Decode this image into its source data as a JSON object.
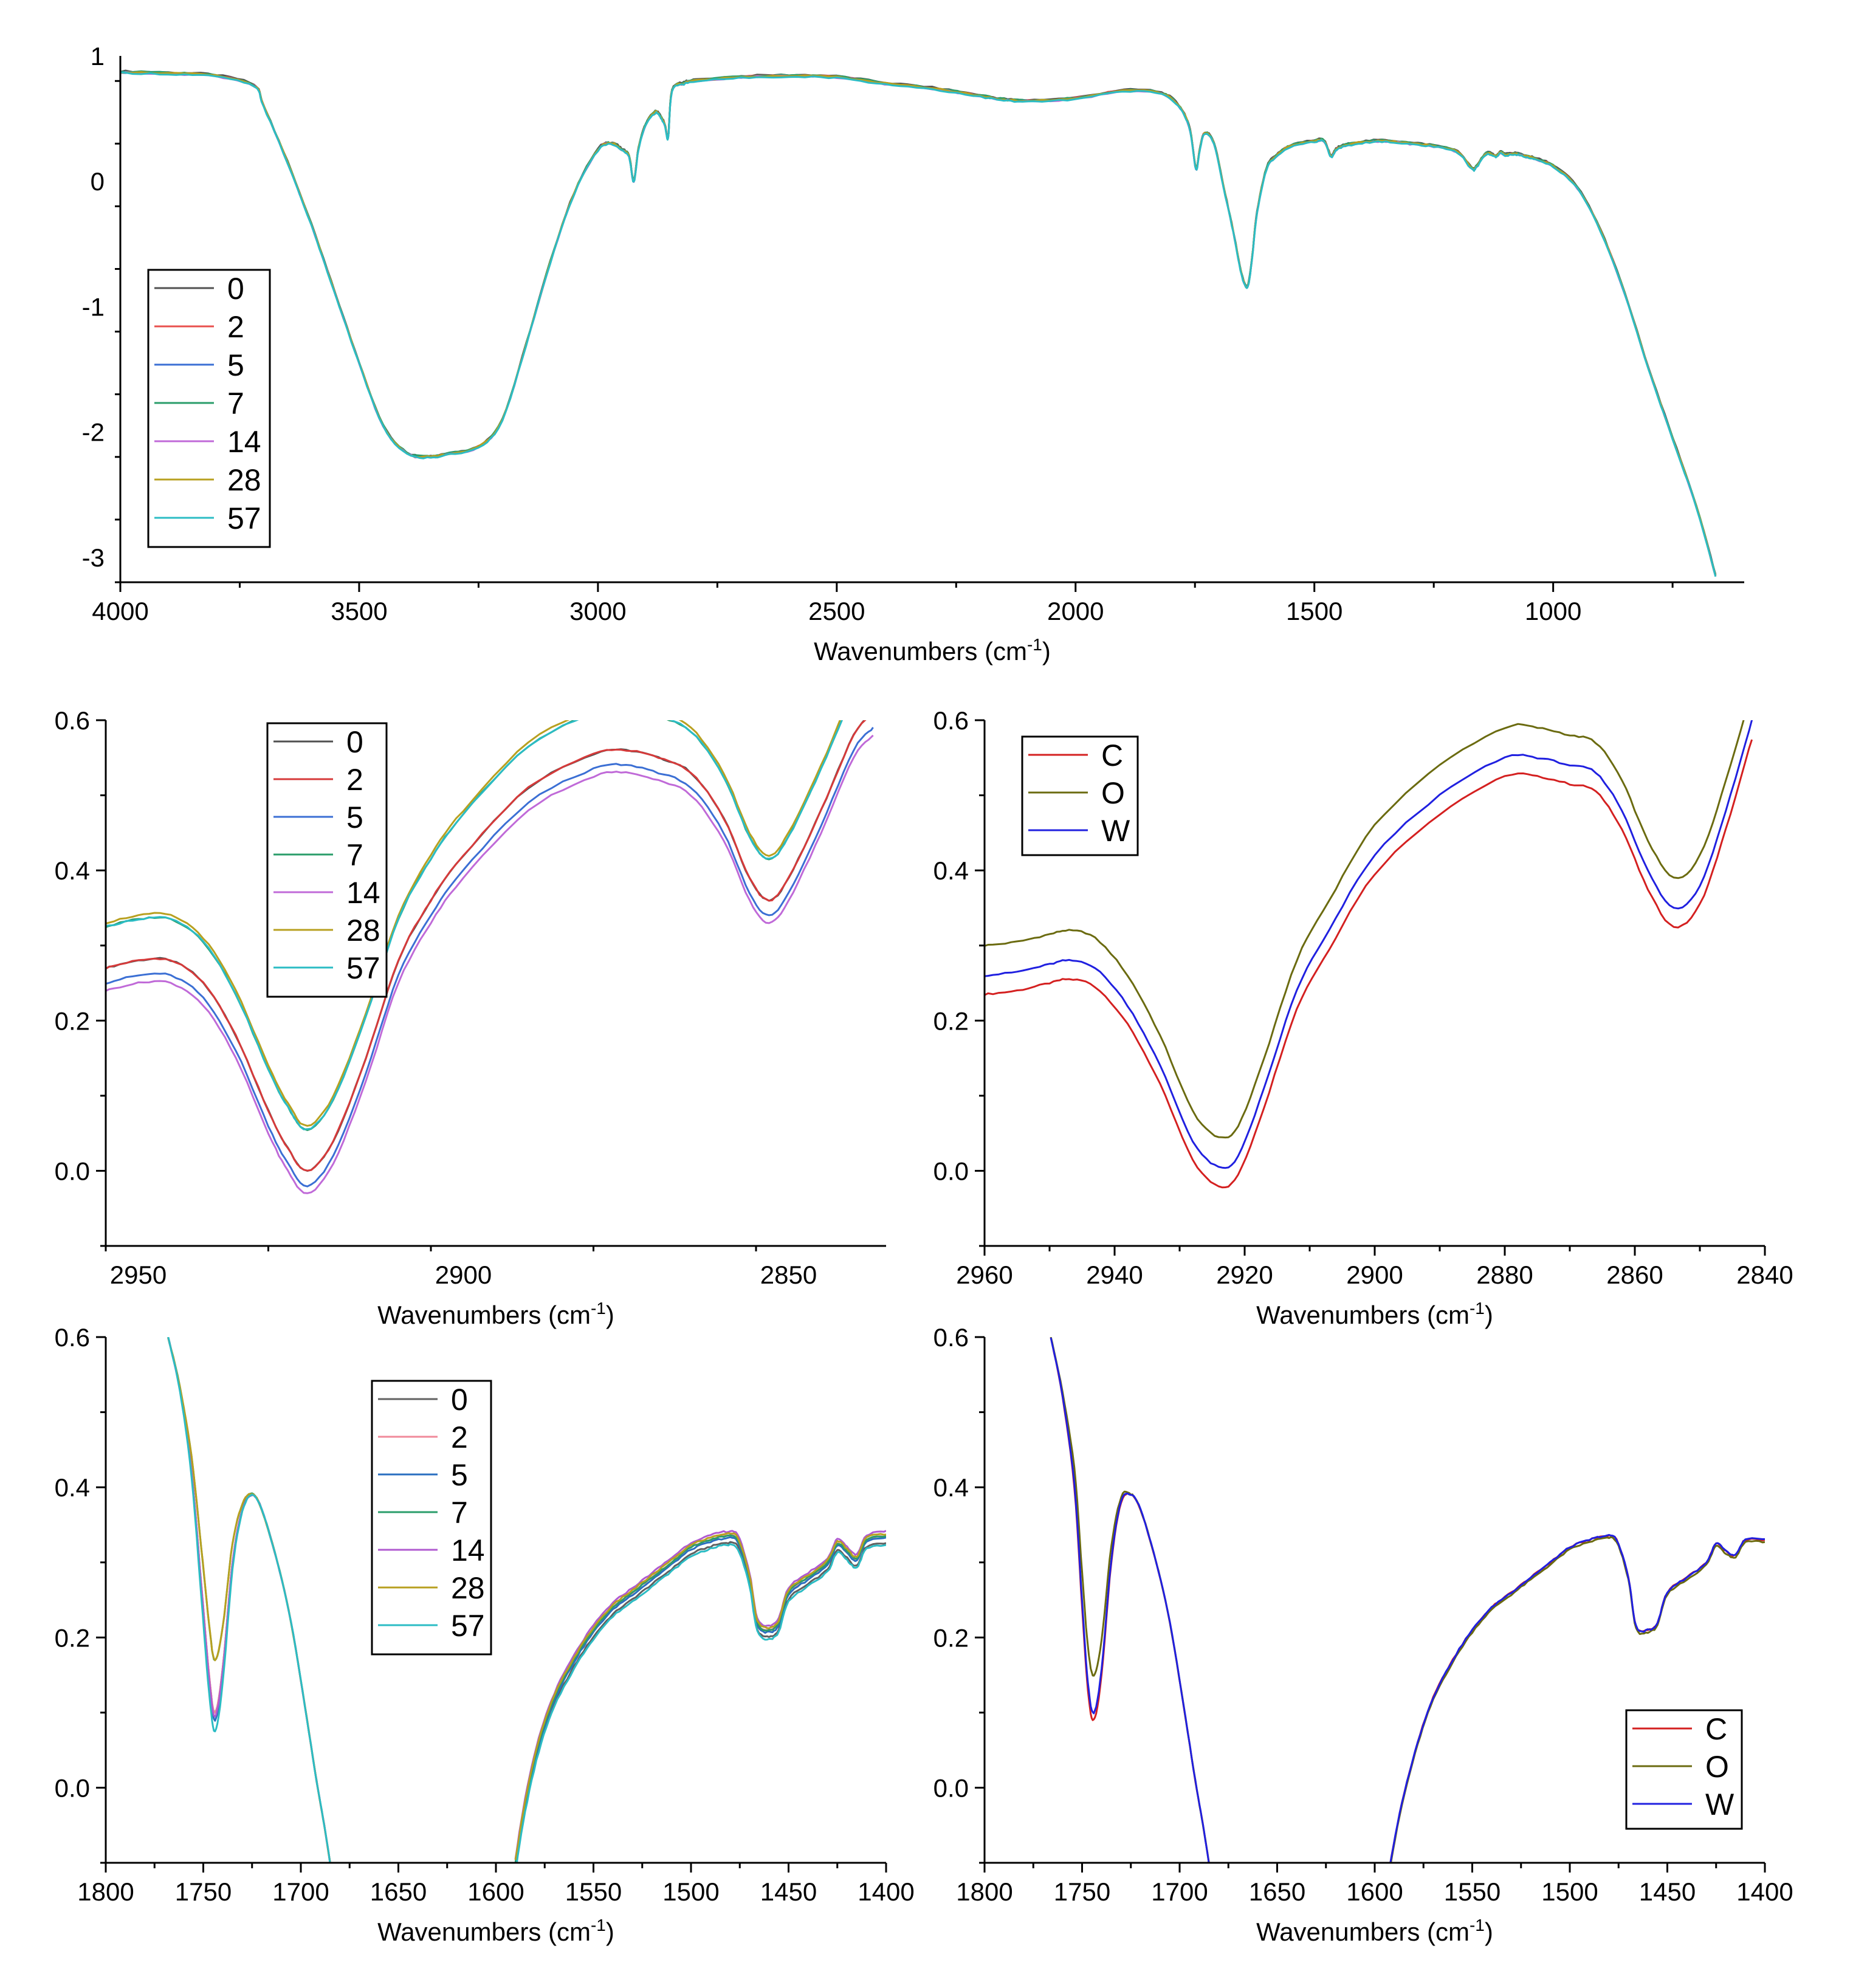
{
  "chart_data": [
    {
      "type": "line",
      "id": "full",
      "xlabel": "Wavenumbers (cm-1)",
      "xlabel_main": "Wavenumbers (cm",
      "xlabel_sup": "-1",
      "xlabel_end": ")",
      "xlim": [
        4000,
        600
      ],
      "ylim": [
        -3.2,
        1.0
      ],
      "xticks": [
        4000,
        3500,
        3000,
        2500,
        2000,
        1500,
        1000
      ],
      "yticks": [
        1,
        0,
        -1,
        -2,
        -3
      ],
      "legend_position": "left",
      "series": [
        {
          "name": "0",
          "color": "#505050"
        },
        {
          "name": "2",
          "color": "#e8504e"
        },
        {
          "name": "5",
          "color": "#3b6fd4"
        },
        {
          "name": "7",
          "color": "#2a9d6a"
        },
        {
          "name": "14",
          "color": "#c06ad8"
        },
        {
          "name": "28",
          "color": "#b8a020"
        },
        {
          "name": "57",
          "color": "#2bbcc4"
        }
      ],
      "x": [
        4000,
        3900,
        3800,
        3720,
        3700,
        3650,
        3600,
        3550,
        3500,
        3450,
        3400,
        3350,
        3320,
        3250,
        3200,
        3150,
        3100,
        3050,
        3000,
        2970,
        2950,
        2935,
        2925,
        2915,
        2900,
        2880,
        2870,
        2860,
        2853,
        2845,
        2820,
        2800,
        2700,
        2600,
        2500,
        2400,
        2300,
        2200,
        2150,
        2100,
        2000,
        1900,
        1820,
        1780,
        1760,
        1748,
        1740,
        1730,
        1710,
        1690,
        1670,
        1655,
        1645,
        1638,
        1630,
        1620,
        1600,
        1580,
        1550,
        1500,
        1480,
        1465,
        1455,
        1440,
        1400,
        1350,
        1300,
        1250,
        1200,
        1170,
        1160,
        1140,
        1120,
        1110,
        1100,
        1080,
        1060,
        1040,
        1000,
        950,
        900,
        850,
        800,
        750,
        700,
        660
      ],
      "values": [
        0.87,
        0.86,
        0.84,
        0.76,
        0.6,
        0.15,
        -0.35,
        -0.9,
        -1.45,
        -1.95,
        -2.17,
        -2.2,
        -2.18,
        -2.12,
        -1.9,
        -1.3,
        -0.65,
        -0.1,
        0.25,
        0.3,
        0.25,
        0.2,
        0.0,
        0.26,
        0.45,
        0.55,
        0.52,
        0.45,
        0.35,
        0.72,
        0.78,
        0.8,
        0.83,
        0.84,
        0.83,
        0.78,
        0.74,
        0.68,
        0.65,
        0.64,
        0.66,
        0.72,
        0.7,
        0.58,
        0.4,
        0.1,
        0.25,
        0.38,
        0.3,
        -0.05,
        -0.4,
        -0.7,
        -0.83,
        -0.82,
        -0.6,
        -0.25,
        0.1,
        0.2,
        0.28,
        0.32,
        0.32,
        0.2,
        0.25,
        0.28,
        0.31,
        0.32,
        0.3,
        0.28,
        0.23,
        0.1,
        0.12,
        0.22,
        0.2,
        0.23,
        0.21,
        0.22,
        0.2,
        0.18,
        0.12,
        -0.05,
        -0.4,
        -0.9,
        -1.5,
        -2.05,
        -2.6,
        -3.15
      ],
      "offsets": [
        0.03,
        0.01,
        0.0,
        0.02,
        -0.01,
        0.005,
        -0.02
      ]
    },
    {
      "type": "line",
      "id": "ch-a",
      "xlabel_main": "Wavenumbers (cm",
      "xlabel_sup": "-1",
      "xlabel_end": ")",
      "xlim": [
        2955,
        2835
      ],
      "ylim": [
        -0.1,
        0.6
      ],
      "xticks": [
        2950,
        2900,
        2850
      ],
      "yticks": [
        0.6,
        0.4,
        0.2,
        0.0
      ],
      "ytick_labels": [
        "0.6",
        "0.4",
        "0.2",
        "0.0"
      ],
      "legend_position": "top-center",
      "series": [
        {
          "name": "0",
          "color": "#505050"
        },
        {
          "name": "2",
          "color": "#d63a3a"
        },
        {
          "name": "5",
          "color": "#3b6fd4"
        },
        {
          "name": "7",
          "color": "#2a9d6a"
        },
        {
          "name": "14",
          "color": "#c06ad8"
        },
        {
          "name": "28",
          "color": "#b8a020"
        },
        {
          "name": "57",
          "color": "#2bbcc4"
        }
      ],
      "x": [
        2955,
        2950,
        2945,
        2940,
        2935,
        2930,
        2927,
        2924,
        2920,
        2915,
        2910,
        2905,
        2900,
        2890,
        2880,
        2875,
        2870,
        2865,
        2860,
        2856,
        2853,
        2850,
        2845,
        2840,
        2837
      ],
      "values": [
        0.27,
        0.28,
        0.28,
        0.25,
        0.18,
        0.08,
        0.03,
        0.0,
        0.04,
        0.15,
        0.28,
        0.36,
        0.42,
        0.51,
        0.555,
        0.56,
        0.55,
        0.53,
        0.47,
        0.39,
        0.36,
        0.39,
        0.48,
        0.58,
        0.61
      ],
      "offsets": [
        0.0,
        0.0,
        -0.02,
        0.055,
        -0.03,
        0.06,
        0.055
      ]
    },
    {
      "type": "line",
      "id": "ch-b",
      "xlabel_main": "Wavenumbers (cm",
      "xlabel_sup": "-1",
      "xlabel_end": ")",
      "xlim": [
        2960,
        2840
      ],
      "ylim": [
        -0.1,
        0.6
      ],
      "xticks": [
        2960,
        2940,
        2920,
        2900,
        2880,
        2860,
        2840
      ],
      "yticks": [
        0.6,
        0.4,
        0.2,
        0.0
      ],
      "ytick_labels": [
        "0.6",
        "0.4",
        "0.2",
        "0.0"
      ],
      "legend_position": "top-left",
      "series": [
        {
          "name": "C",
          "color": "#d42020"
        },
        {
          "name": "O",
          "color": "#6b6b10"
        },
        {
          "name": "W",
          "color": "#2020e0"
        }
      ],
      "x": [
        2960,
        2955,
        2950,
        2947,
        2943,
        2938,
        2933,
        2928,
        2924,
        2921,
        2917,
        2912,
        2907,
        2900,
        2890,
        2880,
        2875,
        2870,
        2866,
        2862,
        2858,
        2854,
        2850,
        2846,
        2842
      ],
      "values": [
        0.26,
        0.265,
        0.275,
        0.28,
        0.27,
        0.22,
        0.14,
        0.04,
        0.005,
        0.02,
        0.11,
        0.24,
        0.32,
        0.42,
        0.5,
        0.55,
        0.55,
        0.54,
        0.53,
        0.48,
        0.4,
        0.35,
        0.38,
        0.48,
        0.6
      ],
      "offsets": [
        -0.025,
        0.04,
        0.0
      ]
    },
    {
      "type": "line",
      "id": "co-a",
      "xlabel_main": "Wavenumbers (cm",
      "xlabel_sup": "-1",
      "xlabel_end": ")",
      "xlim": [
        1800,
        1400
      ],
      "ylim": [
        -0.1,
        0.6
      ],
      "xticks": [
        1800,
        1750,
        1700,
        1650,
        1600,
        1550,
        1500,
        1450,
        1400
      ],
      "yticks": [
        0.6,
        0.4,
        0.2,
        0.0
      ],
      "ytick_labels": [
        "0.6",
        "0.4",
        "0.2",
        "0.0"
      ],
      "legend_position": "top-center",
      "series": [
        {
          "name": "0",
          "color": "#606060"
        },
        {
          "name": "2",
          "color": "#f08a9a"
        },
        {
          "name": "5",
          "color": "#2a6fc0"
        },
        {
          "name": "7",
          "color": "#2a9d6a"
        },
        {
          "name": "14",
          "color": "#b05ad0"
        },
        {
          "name": "28",
          "color": "#b8a020"
        },
        {
          "name": "57",
          "color": "#2bbcc4"
        }
      ],
      "segments": [
        {
          "x": [
            1768,
            1762,
            1756,
            1751,
            1747,
            1744,
            1740,
            1735,
            1730,
            1725,
            1720,
            1712,
            1705,
            1698,
            1692,
            1688,
            1685
          ],
          "values": [
            0.6,
            0.53,
            0.42,
            0.27,
            0.15,
            0.1,
            0.16,
            0.3,
            0.37,
            0.39,
            0.37,
            0.3,
            0.22,
            0.11,
            0.01,
            -0.05,
            -0.1
          ]
        },
        {
          "x": [
            1590,
            1585,
            1578,
            1570,
            1560,
            1550,
            1540,
            1530,
            1520,
            1510,
            1500,
            1490,
            1482,
            1476,
            1470,
            1466,
            1460,
            1455,
            1450,
            1440,
            1430,
            1425,
            1420,
            1415,
            1410,
            1400
          ],
          "values": [
            -0.1,
            -0.02,
            0.06,
            0.12,
            0.17,
            0.21,
            0.24,
            0.26,
            0.28,
            0.3,
            0.32,
            0.33,
            0.335,
            0.33,
            0.28,
            0.22,
            0.21,
            0.22,
            0.26,
            0.28,
            0.3,
            0.325,
            0.315,
            0.305,
            0.33,
            0.335
          ]
        }
      ],
      "offsets": [
        -0.015,
        0.0,
        -0.005,
        0.0,
        0.01,
        0.005,
        -0.02
      ],
      "peak_offsets": [
        0.0,
        0.0,
        -0.01,
        0.07,
        -0.005,
        0.07,
        -0.025
      ]
    },
    {
      "type": "line",
      "id": "co-b",
      "xlabel_main": "Wavenumbers (cm",
      "xlabel_sup": "-1",
      "xlabel_end": ")",
      "xlim": [
        1800,
        1400
      ],
      "ylim": [
        -0.1,
        0.6
      ],
      "xticks": [
        1800,
        1750,
        1700,
        1650,
        1600,
        1550,
        1500,
        1450,
        1400
      ],
      "yticks": [
        0.6,
        0.4,
        0.2,
        0.0
      ],
      "ytick_labels": [
        "0.6",
        "0.4",
        "0.2",
        "0.0"
      ],
      "legend_position": "bottom-right",
      "series": [
        {
          "name": "C",
          "color": "#d42020"
        },
        {
          "name": "O",
          "color": "#6b6b10"
        },
        {
          "name": "W",
          "color": "#2020e0"
        }
      ],
      "segments": [
        {
          "x": [
            1766,
            1760,
            1754,
            1750,
            1747,
            1744,
            1740,
            1735,
            1730,
            1725,
            1720,
            1712,
            1705,
            1698,
            1692,
            1688,
            1685
          ],
          "values": [
            0.6,
            0.52,
            0.4,
            0.24,
            0.13,
            0.09,
            0.15,
            0.3,
            0.38,
            0.39,
            0.37,
            0.3,
            0.22,
            0.11,
            0.01,
            -0.05,
            -0.1
          ]
        },
        {
          "x": [
            1592,
            1586,
            1578,
            1570,
            1560,
            1550,
            1540,
            1530,
            1520,
            1510,
            1500,
            1490,
            1482,
            1476,
            1470,
            1466,
            1460,
            1455,
            1450,
            1440,
            1430,
            1425,
            1420,
            1415,
            1410,
            1400
          ],
          "values": [
            -0.1,
            -0.02,
            0.06,
            0.12,
            0.17,
            0.21,
            0.24,
            0.26,
            0.28,
            0.3,
            0.32,
            0.33,
            0.335,
            0.33,
            0.28,
            0.215,
            0.21,
            0.22,
            0.26,
            0.28,
            0.3,
            0.325,
            0.315,
            0.31,
            0.33,
            0.33
          ]
        }
      ],
      "offsets": [
        0.0,
        -0.005,
        0.0
      ],
      "peak_offsets": [
        0.0,
        0.06,
        0.01
      ]
    }
  ]
}
